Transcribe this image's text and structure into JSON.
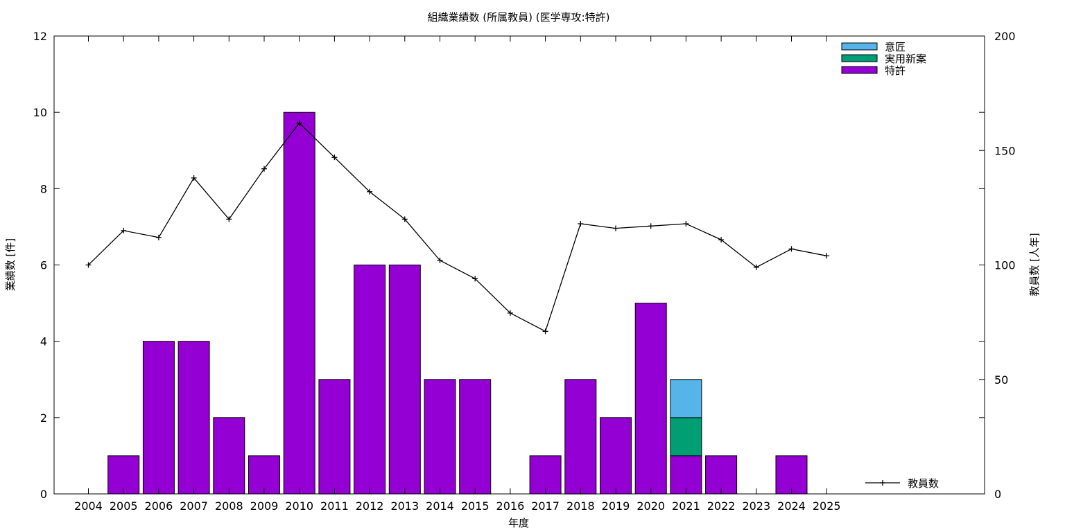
{
  "chart_data": {
    "type": "bar",
    "title": "組織業績数 (所属教員) (医学専攻:特許)",
    "xlabel": "年度",
    "ylabel": "業績数 [件]",
    "y2label": "教員数 [人年]",
    "ylim": [
      0,
      12
    ],
    "y2lim": [
      0,
      200
    ],
    "yticks": [
      0,
      2,
      4,
      6,
      8,
      10,
      12
    ],
    "y2ticks": [
      0,
      50,
      100,
      150,
      200
    ],
    "stacked": true,
    "categories": [
      "2004",
      "2005",
      "2006",
      "2007",
      "2008",
      "2009",
      "2010",
      "2011",
      "2012",
      "2013",
      "2014",
      "2015",
      "2016",
      "2017",
      "2018",
      "2019",
      "2020",
      "2021",
      "2022",
      "2023",
      "2024",
      "2025"
    ],
    "series": [
      {
        "name": "特許",
        "color": "#9400d3",
        "values": [
          0,
          1,
          4,
          4,
          2,
          1,
          10,
          3,
          6,
          6,
          3,
          3,
          0,
          1,
          3,
          2,
          5,
          1,
          1,
          0,
          1,
          0
        ]
      },
      {
        "name": "実用新案",
        "color": "#009e73",
        "values": [
          0,
          0,
          0,
          0,
          0,
          0,
          0,
          0,
          0,
          0,
          0,
          0,
          0,
          0,
          0,
          0,
          0,
          1,
          0,
          0,
          0,
          0
        ]
      },
      {
        "name": "意匠",
        "color": "#56b4e9",
        "values": [
          0,
          0,
          0,
          0,
          0,
          0,
          0,
          0,
          0,
          0,
          0,
          0,
          0,
          0,
          0,
          0,
          0,
          1,
          0,
          0,
          0,
          0
        ]
      }
    ],
    "line_series": {
      "name": "教員数",
      "color": "#000000",
      "axis": "right",
      "values": [
        100,
        115,
        112,
        138,
        120,
        142,
        162,
        147,
        132,
        120,
        102,
        94,
        79,
        71,
        118,
        116,
        117,
        118,
        111,
        99,
        107,
        104
      ]
    },
    "legend_position": "top-right",
    "grid": false
  }
}
